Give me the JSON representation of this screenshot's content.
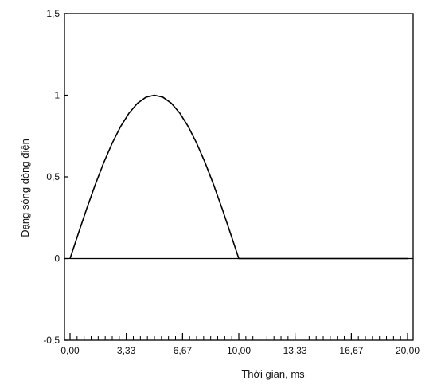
{
  "chart_data": {
    "type": "line",
    "title": "",
    "xlabel": "Thời gian, ms",
    "ylabel": "Dạng sóng dòng điện",
    "xlim": [
      -0.33,
      20.33
    ],
    "ylim": [
      -0.5,
      1.5
    ],
    "x_ticks": [
      0,
      3.33,
      6.67,
      10,
      13.33,
      16.67,
      20
    ],
    "x_tick_labels": [
      "0,00",
      "3,33",
      "6,67",
      "10,00",
      "13,33",
      "16,67",
      "20,00"
    ],
    "y_ticks": [
      -0.5,
      0,
      0.5,
      1,
      1.5
    ],
    "y_tick_labels": [
      "-0,5",
      "0",
      "0,5",
      "1",
      "1,5"
    ],
    "x_minor_tick_step": 0.4167,
    "grid": false,
    "zero_line": true,
    "series": [
      {
        "color": "#000000",
        "x": [
          0,
          0.5,
          1,
          1.5,
          2,
          2.5,
          3,
          3.5,
          4,
          4.5,
          5,
          5.5,
          6,
          6.5,
          7,
          7.5,
          8,
          8.5,
          9,
          9.5,
          10,
          11,
          12,
          13,
          14,
          15,
          16,
          17,
          18,
          19,
          20
        ],
        "y": [
          0,
          0.156,
          0.309,
          0.454,
          0.588,
          0.707,
          0.809,
          0.891,
          0.951,
          0.988,
          1,
          0.988,
          0.951,
          0.891,
          0.809,
          0.707,
          0.588,
          0.454,
          0.309,
          0.156,
          0,
          0,
          0,
          0,
          0,
          0,
          0,
          0,
          0,
          0,
          0
        ]
      }
    ]
  }
}
